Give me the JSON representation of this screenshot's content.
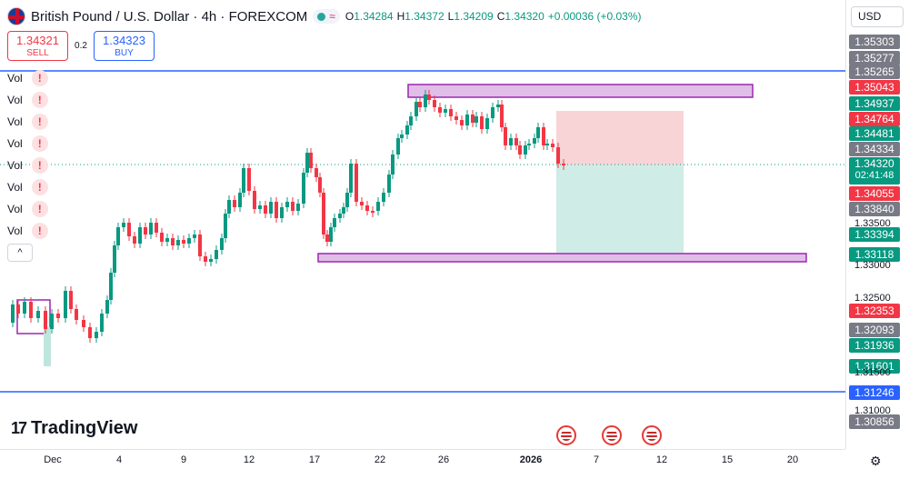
{
  "header": {
    "title": "British Pound / U.S. Dollar · 4h · FOREXCOM",
    "ohlc": [
      {
        "k": "O",
        "v": "1.34284"
      },
      {
        "k": "H",
        "v": "1.34372"
      },
      {
        "k": "L",
        "v": "1.34209"
      },
      {
        "k": "C",
        "v": "1.34320"
      },
      {
        "k": "",
        "v": "+0.00036 (+0.03%)"
      }
    ],
    "currency": "USD"
  },
  "trade": {
    "sell_price": "1.34321",
    "sell_label": "SELL",
    "spread": "0.2",
    "buy_price": "1.34323",
    "buy_label": "BUY"
  },
  "volume_rows": [
    "Vol",
    "Vol",
    "Vol",
    "Vol",
    "Vol",
    "Vol",
    "Vol",
    "Vol"
  ],
  "warning_glyph": "!",
  "collapse_glyph": "^",
  "logo_text": "TradingView",
  "price_labels": [
    {
      "text": "1.35303",
      "color": "#787b86"
    },
    {
      "text": "1.35277",
      "color": "#787b86"
    },
    {
      "text": "1.35265",
      "color": "#787b86"
    },
    {
      "text": "1.35043",
      "color": "#f23645"
    },
    {
      "text": "1.34937",
      "color": "#089981"
    },
    {
      "text": "1.34764",
      "color": "#f23645"
    },
    {
      "text": "1.34481",
      "color": "#089981"
    },
    {
      "text": "1.34334",
      "color": "#787b86"
    },
    {
      "text": "1.34055",
      "color": "#f23645"
    },
    {
      "text": "1.33840",
      "color": "#787b86"
    },
    {
      "text": "1.33394",
      "color": "#089981"
    },
    {
      "text": "1.33118",
      "color": "#089981"
    },
    {
      "text": "1.32353",
      "color": "#f23645"
    },
    {
      "text": "1.32093",
      "color": "#787b86"
    },
    {
      "text": "1.31936",
      "color": "#089981"
    },
    {
      "text": "1.31601",
      "color": "#089981"
    },
    {
      "text": "1.31246",
      "color": "#2962ff"
    },
    {
      "text": "1.30856",
      "color": "#787b86"
    }
  ],
  "price_ticks": [
    "1.33500",
    "1.33000",
    "1.32500",
    "1.31500",
    "1.31000"
  ],
  "current_price": {
    "price": "1.34320",
    "countdown": "02:41:48"
  },
  "time_ticks": [
    "Dec",
    "4",
    "9",
    "12",
    "17",
    "22",
    "26",
    "2026",
    "7",
    "12",
    "15",
    "20"
  ],
  "colors": {
    "up": "#089981",
    "down": "#f23645",
    "zone": "#9c27b0",
    "hline": "#2962ff"
  }
}
